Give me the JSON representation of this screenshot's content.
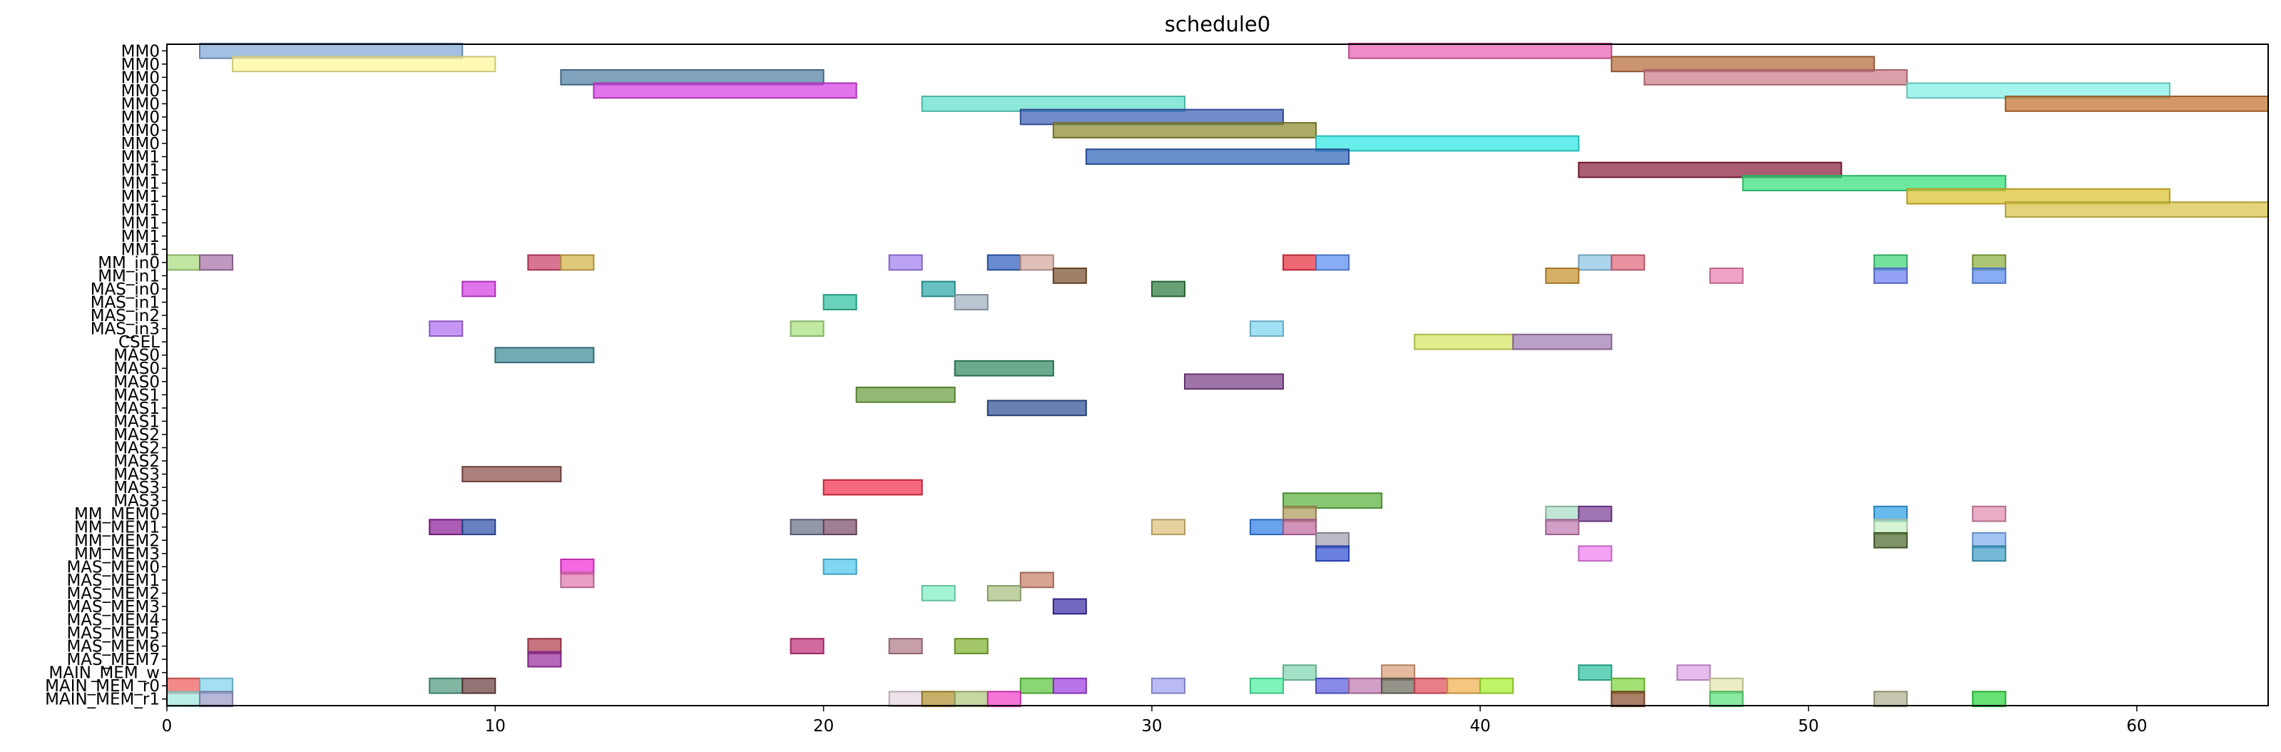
{
  "chart_data": {
    "type": "gantt",
    "title": "schedule0",
    "xlabel": "",
    "ylabel": "",
    "xlim": [
      0,
      64
    ],
    "x_ticks": [
      0,
      10,
      20,
      30,
      40,
      50,
      60
    ],
    "grid": false,
    "rows": [
      "MM0",
      "MM0",
      "MM0",
      "MM0",
      "MM0",
      "MM0",
      "MM0",
      "MM0",
      "MM1",
      "MM1",
      "MM1",
      "MM1",
      "MM1",
      "MM1",
      "MM1",
      "MM1",
      "MM_in0",
      "MM_in1",
      "MAS_in0",
      "MAS_in1",
      "MAS_in2",
      "MAS_in3",
      "CSEL",
      "MAS0",
      "MAS0",
      "MAS0",
      "MAS1",
      "MAS1",
      "MAS1",
      "MAS2",
      "MAS2",
      "MAS2",
      "MAS3",
      "MAS3",
      "MAS3",
      "MM_MEM0",
      "MM_MEM1",
      "MM_MEM2",
      "MM_MEM3",
      "MAS_MEM0",
      "MAS_MEM1",
      "MAS_MEM2",
      "MAS_MEM3",
      "MAS_MEM4",
      "MAS_MEM5",
      "MAS_MEM6",
      "MAS_MEM7",
      "MAIN_MEM_w",
      "MAIN_MEM_r0",
      "MAIN_MEM_r1"
    ],
    "tasks": [
      {
        "row": 0,
        "start": 1,
        "end": 9,
        "color": "#7fa6d6"
      },
      {
        "row": 0,
        "start": 36,
        "end": 44,
        "color": "#e65fb0"
      },
      {
        "row": 1,
        "start": 2,
        "end": 10,
        "color": "#fff79a"
      },
      {
        "row": 1,
        "start": 44,
        "end": 52,
        "color": "#b56a3c"
      },
      {
        "row": 2,
        "start": 12,
        "end": 20,
        "color": "#4f7ea3"
      },
      {
        "row": 2,
        "start": 45,
        "end": 53,
        "color": "#cc7a86"
      },
      {
        "row": 3,
        "start": 13,
        "end": 21,
        "color": "#d63ee3"
      },
      {
        "row": 3,
        "start": 53,
        "end": 61,
        "color": "#7ef0e6"
      },
      {
        "row": 4,
        "start": 23,
        "end": 31,
        "color": "#5fe0cc"
      },
      {
        "row": 4,
        "start": 56,
        "end": 64,
        "color": "#c0702f"
      },
      {
        "row": 5,
        "start": 26,
        "end": 34,
        "color": "#3d5eb5"
      },
      {
        "row": 6,
        "start": 27,
        "end": 35,
        "color": "#8c8a2e"
      },
      {
        "row": 7,
        "start": 35,
        "end": 43,
        "color": "#2ee8e3"
      },
      {
        "row": 8,
        "start": 28,
        "end": 36,
        "color": "#2f62b8"
      },
      {
        "row": 9,
        "start": 43,
        "end": 51,
        "color": "#8a1f3a"
      },
      {
        "row": 10,
        "start": 48,
        "end": 56,
        "color": "#33e07a"
      },
      {
        "row": 11,
        "start": 53,
        "end": 61,
        "color": "#dcc22e"
      },
      {
        "row": 12,
        "start": 56,
        "end": 64,
        "color": "#d8c44a"
      },
      {
        "row": 16,
        "start": 0,
        "end": 1,
        "color": "#a8dc7e"
      },
      {
        "row": 16,
        "start": 1,
        "end": 2,
        "color": "#a872a8"
      },
      {
        "row": 16,
        "start": 11,
        "end": 12,
        "color": "#cc3f6a"
      },
      {
        "row": 16,
        "start": 12,
        "end": 13,
        "color": "#d6b44a"
      },
      {
        "row": 16,
        "start": 22,
        "end": 23,
        "color": "#a27ef0"
      },
      {
        "row": 16,
        "start": 25,
        "end": 26,
        "color": "#2f5ebe"
      },
      {
        "row": 16,
        "start": 26,
        "end": 27,
        "color": "#d6a8a0"
      },
      {
        "row": 16,
        "start": 34,
        "end": 35,
        "color": "#e62f3f"
      },
      {
        "row": 16,
        "start": 35,
        "end": 36,
        "color": "#5c8ef0"
      },
      {
        "row": 16,
        "start": 43,
        "end": 44,
        "color": "#8cc4e6"
      },
      {
        "row": 16,
        "start": 44,
        "end": 45,
        "color": "#e06a7e"
      },
      {
        "row": 16,
        "start": 52,
        "end": 53,
        "color": "#3ed67a"
      },
      {
        "row": 16,
        "start": 55,
        "end": 56,
        "color": "#8cb03e"
      },
      {
        "row": 17,
        "start": 27,
        "end": 28,
        "color": "#7a4f2e"
      },
      {
        "row": 17,
        "start": 42,
        "end": 43,
        "color": "#c8922e"
      },
      {
        "row": 17,
        "start": 47,
        "end": 48,
        "color": "#ea80b0"
      },
      {
        "row": 17,
        "start": 52,
        "end": 53,
        "color": "#6a7ef0"
      },
      {
        "row": 17,
        "start": 55,
        "end": 56,
        "color": "#5c8ef0"
      },
      {
        "row": 18,
        "start": 9,
        "end": 10,
        "color": "#d63ee3"
      },
      {
        "row": 18,
        "start": 23,
        "end": 24,
        "color": "#2ea8a8"
      },
      {
        "row": 18,
        "start": 30,
        "end": 31,
        "color": "#2f7a3e"
      },
      {
        "row": 19,
        "start": 20,
        "end": 21,
        "color": "#2ec0a0"
      },
      {
        "row": 19,
        "start": 24,
        "end": 25,
        "color": "#a0aebe"
      },
      {
        "row": 21,
        "start": 8,
        "end": 9,
        "color": "#b06ef0"
      },
      {
        "row": 21,
        "start": 19,
        "end": 20,
        "color": "#a8e07e"
      },
      {
        "row": 21,
        "start": 33,
        "end": 34,
        "color": "#80d4f0"
      },
      {
        "row": 22,
        "start": 38,
        "end": 41,
        "color": "#d6e65f"
      },
      {
        "row": 22,
        "start": 41,
        "end": 44,
        "color": "#a07ab0"
      },
      {
        "row": 23,
        "start": 10,
        "end": 13,
        "color": "#3d8a96"
      },
      {
        "row": 24,
        "start": 24,
        "end": 27,
        "color": "#2f8a5f"
      },
      {
        "row": 25,
        "start": 31,
        "end": 34,
        "color": "#7a3e88"
      },
      {
        "row": 26,
        "start": 21,
        "end": 24,
        "color": "#6aa03e"
      },
      {
        "row": 27,
        "start": 25,
        "end": 28,
        "color": "#2f4f96"
      },
      {
        "row": 32,
        "start": 9,
        "end": 12,
        "color": "#8a4f48"
      },
      {
        "row": 33,
        "start": 20,
        "end": 23,
        "color": "#f02f4a"
      },
      {
        "row": 34,
        "start": 34,
        "end": 37,
        "color": "#5cb03e"
      },
      {
        "row": 35,
        "start": 34,
        "end": 35,
        "color": "#b09a5c"
      },
      {
        "row": 35,
        "start": 42,
        "end": 43,
        "color": "#a8dcc4"
      },
      {
        "row": 35,
        "start": 43,
        "end": 44,
        "color": "#7a3e96"
      },
      {
        "row": 35,
        "start": 52,
        "end": 53,
        "color": "#2fa0e6"
      },
      {
        "row": 35,
        "start": 55,
        "end": 56,
        "color": "#e08ab0"
      },
      {
        "row": 36,
        "start": 8,
        "end": 9,
        "color": "#8a1f96"
      },
      {
        "row": 36,
        "start": 9,
        "end": 10,
        "color": "#2f4fa8"
      },
      {
        "row": 36,
        "start": 19,
        "end": 20,
        "color": "#6a7088"
      },
      {
        "row": 36,
        "start": 20,
        "end": 21,
        "color": "#7a4f6a"
      },
      {
        "row": 36,
        "start": 30,
        "end": 31,
        "color": "#dcc07a"
      },
      {
        "row": 36,
        "start": 33,
        "end": 34,
        "color": "#2f7ee6"
      },
      {
        "row": 36,
        "start": 34,
        "end": 35,
        "color": "#c06aa0"
      },
      {
        "row": 36,
        "start": 42,
        "end": 43,
        "color": "#c07ab0"
      },
      {
        "row": 36,
        "start": 52,
        "end": 53,
        "color": "#c8f0c4"
      },
      {
        "row": 37,
        "start": 35,
        "end": 36,
        "color": "#a0a0b0"
      },
      {
        "row": 37,
        "start": 52,
        "end": 53,
        "color": "#4f6a2e"
      },
      {
        "row": 37,
        "start": 55,
        "end": 56,
        "color": "#7eaef0"
      },
      {
        "row": 38,
        "start": 35,
        "end": 36,
        "color": "#2f4fd6"
      },
      {
        "row": 38,
        "start": 43,
        "end": 44,
        "color": "#f07ef0"
      },
      {
        "row": 38,
        "start": 55,
        "end": 56,
        "color": "#3ea0c8"
      },
      {
        "row": 39,
        "start": 12,
        "end": 13,
        "color": "#f02fd6"
      },
      {
        "row": 39,
        "start": 20,
        "end": 21,
        "color": "#4fc8f0"
      },
      {
        "row": 40,
        "start": 12,
        "end": 13,
        "color": "#e07ab0"
      },
      {
        "row": 40,
        "start": 26,
        "end": 27,
        "color": "#c8806a"
      },
      {
        "row": 41,
        "start": 23,
        "end": 24,
        "color": "#7ef0c4"
      },
      {
        "row": 41,
        "start": 25,
        "end": 26,
        "color": "#a8c07e"
      },
      {
        "row": 42,
        "start": 27,
        "end": 28,
        "color": "#3e2fa8"
      },
      {
        "row": 45,
        "start": 11,
        "end": 12,
        "color": "#b03e4f"
      },
      {
        "row": 45,
        "start": 19,
        "end": 20,
        "color": "#c0307a"
      },
      {
        "row": 45,
        "start": 22,
        "end": 23,
        "color": "#b07a88"
      },
      {
        "row": 45,
        "start": 24,
        "end": 25,
        "color": "#7eb02e"
      },
      {
        "row": 46,
        "start": 11,
        "end": 12,
        "color": "#9a2fa0"
      },
      {
        "row": 47,
        "start": 34,
        "end": 35,
        "color": "#7ed6b0"
      },
      {
        "row": 47,
        "start": 37,
        "end": 38,
        "color": "#dca07a"
      },
      {
        "row": 47,
        "start": 43,
        "end": 44,
        "color": "#2ec0a0"
      },
      {
        "row": 47,
        "start": 46,
        "end": 47,
        "color": "#dca0e6"
      },
      {
        "row": 48,
        "start": 0,
        "end": 1,
        "color": "#f05c5c"
      },
      {
        "row": 48,
        "start": 1,
        "end": 2,
        "color": "#80d4f0"
      },
      {
        "row": 48,
        "start": 8,
        "end": 9,
        "color": "#4f9a7e"
      },
      {
        "row": 48,
        "start": 9,
        "end": 10,
        "color": "#6a3e3e"
      },
      {
        "row": 48,
        "start": 26,
        "end": 27,
        "color": "#5cc83e"
      },
      {
        "row": 48,
        "start": 27,
        "end": 28,
        "color": "#a03ee0"
      },
      {
        "row": 48,
        "start": 30,
        "end": 31,
        "color": "#a0a0f0"
      },
      {
        "row": 48,
        "start": 33,
        "end": 34,
        "color": "#4ff0a0"
      },
      {
        "row": 48,
        "start": 35,
        "end": 36,
        "color": "#5c5ce0"
      },
      {
        "row": 48,
        "start": 36,
        "end": 37,
        "color": "#c07ab0"
      },
      {
        "row": 48,
        "start": 37,
        "end": 38,
        "color": "#6a6a5c"
      },
      {
        "row": 48,
        "start": 38,
        "end": 39,
        "color": "#e04f5c"
      },
      {
        "row": 48,
        "start": 39,
        "end": 40,
        "color": "#f0b04f"
      },
      {
        "row": 48,
        "start": 40,
        "end": 41,
        "color": "#a8f02e"
      },
      {
        "row": 48,
        "start": 44,
        "end": 45,
        "color": "#7ed63e"
      },
      {
        "row": 48,
        "start": 47,
        "end": 48,
        "color": "#e6e6b0"
      },
      {
        "row": 49,
        "start": 0,
        "end": 1,
        "color": "#a0e6dc"
      },
      {
        "row": 49,
        "start": 1,
        "end": 2,
        "color": "#9a9ac8"
      },
      {
        "row": 49,
        "start": 22,
        "end": 23,
        "color": "#e6d6e0"
      },
      {
        "row": 49,
        "start": 23,
        "end": 24,
        "color": "#b0902e"
      },
      {
        "row": 49,
        "start": 24,
        "end": 25,
        "color": "#b0c87e"
      },
      {
        "row": 49,
        "start": 25,
        "end": 26,
        "color": "#f03ec8"
      },
      {
        "row": 49,
        "start": 44,
        "end": 45,
        "color": "#8a4f2e"
      },
      {
        "row": 49,
        "start": 47,
        "end": 48,
        "color": "#5ce07a"
      },
      {
        "row": 49,
        "start": 52,
        "end": 53,
        "color": "#b0b090"
      },
      {
        "row": 49,
        "start": 55,
        "end": 56,
        "color": "#2ed63e"
      }
    ]
  }
}
